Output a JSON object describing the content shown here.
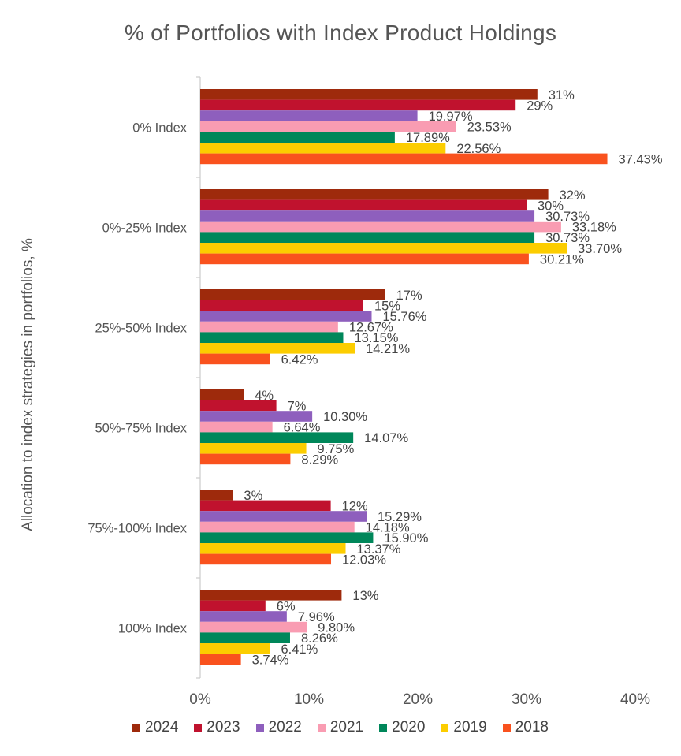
{
  "chart_data": {
    "type": "bar",
    "orientation": "horizontal",
    "title": "% of Portfolios with Index Product Holdings",
    "xlabel": "",
    "ylabel": "Allocation to index strategies in portfolios, %",
    "xlim": [
      0,
      40
    ],
    "xticks": [
      0,
      10,
      20,
      30,
      40
    ],
    "xtick_labels": [
      "0%",
      "10%",
      "20%",
      "30%",
      "40%"
    ],
    "grid": false,
    "legend_position": "bottom",
    "categories": [
      "0% Index",
      "0%-25% Index",
      "25%-50% Index",
      "50%-75% Index",
      "75%-100% Index",
      "100% Index"
    ],
    "series": [
      {
        "name": "2024",
        "color": "#9e2a0c",
        "values": [
          31,
          32,
          17,
          4,
          3,
          13
        ],
        "labels": [
          "31%",
          "32%",
          "17%",
          "4%",
          "3%",
          "13%"
        ]
      },
      {
        "name": "2023",
        "color": "#c0122e",
        "values": [
          29,
          30,
          15,
          7,
          12,
          6
        ],
        "labels": [
          "29%",
          "30%",
          "15%",
          "7%",
          "12%",
          "6%"
        ]
      },
      {
        "name": "2022",
        "color": "#8e5fbd",
        "values": [
          19.97,
          30.73,
          15.76,
          10.3,
          15.29,
          7.96
        ],
        "labels": [
          "19.97%",
          "30.73%",
          "15.76%",
          "10.30%",
          "15.29%",
          "7.96%"
        ]
      },
      {
        "name": "2021",
        "color": "#f99cb2",
        "values": [
          23.53,
          33.18,
          12.67,
          6.64,
          14.18,
          9.8
        ],
        "labels": [
          "23.53%",
          "33.18%",
          "12.67%",
          "6.64%",
          "14.18%",
          "9.80%"
        ]
      },
      {
        "name": "2020",
        "color": "#00875a",
        "values": [
          17.89,
          30.73,
          13.15,
          14.07,
          15.9,
          8.26
        ],
        "labels": [
          "17.89%",
          "30.73%",
          "13.15%",
          "14.07%",
          "15.90%",
          "8.26%"
        ]
      },
      {
        "name": "2019",
        "color": "#fccd00",
        "values": [
          22.56,
          33.7,
          14.21,
          9.75,
          13.37,
          6.41
        ],
        "labels": [
          "22.56%",
          "33.70%",
          "14.21%",
          "9.75%",
          "13.37%",
          "6.41%"
        ]
      },
      {
        "name": "2018",
        "color": "#f9521e",
        "values": [
          37.43,
          30.21,
          6.42,
          8.29,
          12.03,
          3.74
        ],
        "labels": [
          "37.43%",
          "30.21%",
          "6.42%",
          "8.29%",
          "12.03%",
          "3.74%"
        ]
      }
    ]
  }
}
